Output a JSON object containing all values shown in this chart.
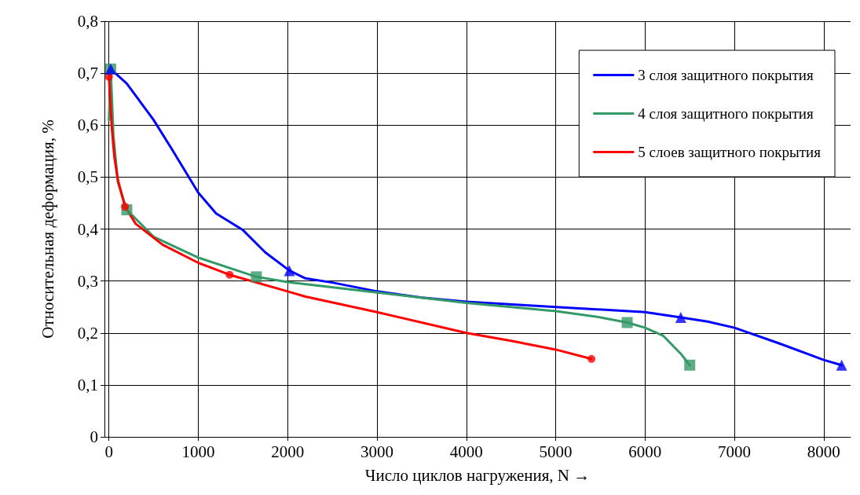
{
  "chart_data": {
    "type": "line",
    "xlabel": "Число циклов нагружения, N →",
    "ylabel": "Относительная деформация, %",
    "xlim": [
      -50,
      8300
    ],
    "xticks": [
      0,
      1000,
      2000,
      3000,
      4000,
      5000,
      6000,
      7000,
      8000
    ],
    "ylim": [
      0,
      0.8
    ],
    "yticks": [
      {
        "value": 0,
        "label": "0"
      },
      {
        "value": 0.1,
        "label": "0,1"
      },
      {
        "value": 0.2,
        "label": "0,2"
      },
      {
        "value": 0.3,
        "label": "0,3"
      },
      {
        "value": 0.4,
        "label": "0,4"
      },
      {
        "value": 0.5,
        "label": "0,5"
      },
      {
        "value": 0.6,
        "label": "0,6"
      },
      {
        "value": 0.7,
        "label": "0,7"
      },
      {
        "value": 0.8,
        "label": "0,8"
      }
    ],
    "grid": true,
    "legend": "top right",
    "marker": "none",
    "line_style": "solid",
    "series": [
      {
        "name": "3 слоя защитного покрытия",
        "color": "#0000ff",
        "x": [
          20,
          200,
          500,
          700,
          1000,
          1200,
          1500,
          1750,
          2020,
          2200,
          2500,
          3000,
          3500,
          4000,
          5000,
          6000,
          6400,
          6700,
          7000,
          7500,
          8000,
          8200
        ],
        "values": [
          0.708,
          0.68,
          0.61,
          0.555,
          0.47,
          0.43,
          0.398,
          0.355,
          0.32,
          0.305,
          0.297,
          0.28,
          0.268,
          0.26,
          0.25,
          0.24,
          0.23,
          0.222,
          0.21,
          0.18,
          0.148,
          0.138
        ]
      },
      {
        "name": "4 слоя защитного покрытия",
        "color": "#339966",
        "x": [
          0,
          20,
          50,
          100,
          200,
          500,
          1000,
          1650,
          2000,
          3000,
          4000,
          5000,
          5500,
          5800,
          6000,
          6200,
          6400,
          6500
        ],
        "values": [
          0.61,
          0.708,
          0.58,
          0.49,
          0.437,
          0.385,
          0.345,
          0.308,
          0.298,
          0.278,
          0.258,
          0.242,
          0.23,
          0.22,
          0.21,
          0.195,
          0.16,
          0.138
        ]
      },
      {
        "name": "5 слоев защитного покрытия",
        "color": "#ff0000",
        "x": [
          0,
          30,
          60,
          100,
          180,
          300,
          600,
          1000,
          1350,
          2000,
          2200,
          3000,
          4000,
          4500,
          5000,
          5400
        ],
        "values": [
          0.693,
          0.6,
          0.54,
          0.495,
          0.443,
          0.41,
          0.37,
          0.335,
          0.312,
          0.28,
          0.27,
          0.24,
          0.2,
          0.185,
          0.168,
          0.15
        ]
      },
      {
        "type": "scatter",
        "color": "#0000ff",
        "marker": "triangle",
        "x": [
          20,
          2020,
          6400,
          8200
        ],
        "values": [
          0.708,
          0.32,
          0.23,
          0.138
        ]
      },
      {
        "type": "scatter",
        "color": "#339966",
        "marker": "square",
        "x": [
          20,
          200,
          1650,
          5800,
          6500
        ],
        "values": [
          0.708,
          0.437,
          0.308,
          0.22,
          0.138
        ]
      },
      {
        "type": "scatter",
        "color": "#ff0000",
        "marker": "circle",
        "x": [
          0,
          180,
          1350,
          5400
        ],
        "values": [
          0.693,
          0.443,
          0.312,
          0.15
        ]
      }
    ]
  }
}
